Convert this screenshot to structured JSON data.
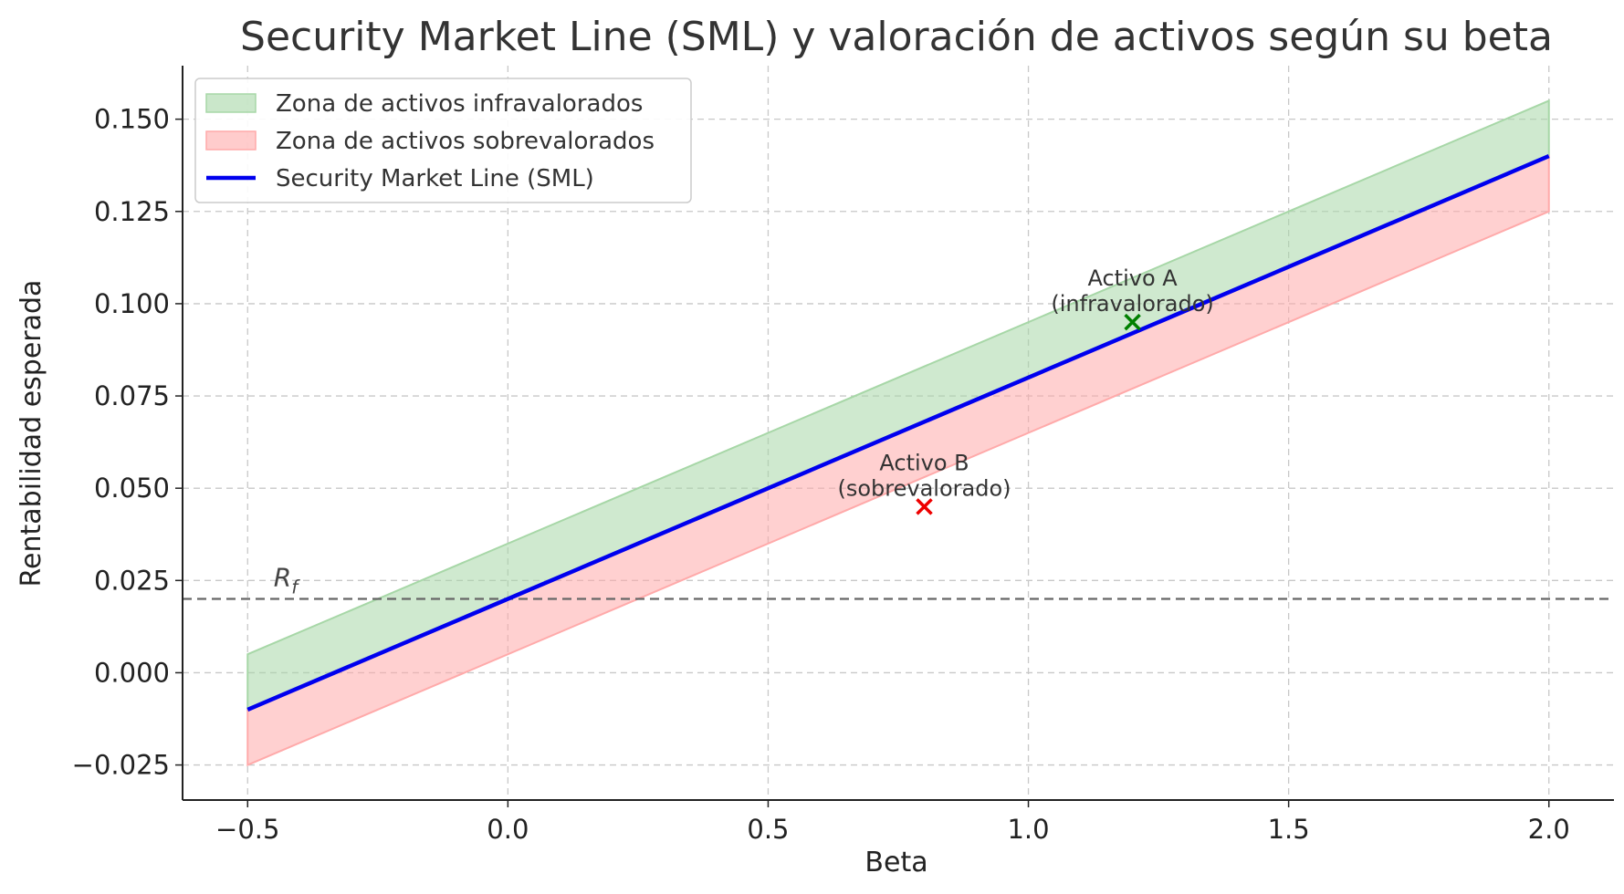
{
  "chart_data": {
    "type": "line",
    "title": "Security Market Line (SML) y valoración de activos según su beta",
    "xlabel": "Beta",
    "ylabel": "Rentabilidad esperada",
    "xlim": [
      -0.625,
      2.125
    ],
    "ylim": [
      -0.0345,
      0.1645
    ],
    "grid": true,
    "legend_position": "top-left",
    "x_ticks": [
      -0.5,
      0.0,
      0.5,
      1.0,
      1.5,
      2.0
    ],
    "x_tick_labels": [
      "−0.5",
      "0.0",
      "0.5",
      "1.0",
      "1.5",
      "2.0"
    ],
    "y_ticks": [
      -0.025,
      0.0,
      0.025,
      0.05,
      0.075,
      0.1,
      0.125,
      0.15
    ],
    "y_tick_labels": [
      "−0.025",
      "0.000",
      "0.025",
      "0.050",
      "0.075",
      "0.100",
      "0.125",
      "0.150"
    ],
    "risk_free": {
      "value": 0.02,
      "label": "R",
      "subscript": "f",
      "color": "#666666"
    },
    "series": [
      {
        "name": "Zona de activos infravalorados",
        "kind": "band",
        "x": [
          -0.5,
          2.0
        ],
        "lower": [
          -0.01,
          0.14
        ],
        "upper": [
          0.005,
          0.155
        ],
        "color": "#a7d7a7"
      },
      {
        "name": "Zona de activos sobrevalorados",
        "kind": "band",
        "x": [
          -0.5,
          2.0
        ],
        "lower": [
          -0.025,
          0.125
        ],
        "upper": [
          -0.01,
          0.14
        ],
        "color": "#ffaaaa"
      },
      {
        "name": "Security Market Line (SML)",
        "kind": "line",
        "x": [
          -0.5,
          2.0
        ],
        "y": [
          -0.01,
          0.14
        ],
        "color": "#0000ee"
      }
    ],
    "points": [
      {
        "x": 1.2,
        "y": 0.095,
        "label_line1": "Activo A",
        "label_line2": "(infravalorado)",
        "color": "#008000"
      },
      {
        "x": 0.8,
        "y": 0.045,
        "label_line1": "Activo B",
        "label_line2": "(sobrevalorado)",
        "color": "#ee0000"
      }
    ]
  }
}
